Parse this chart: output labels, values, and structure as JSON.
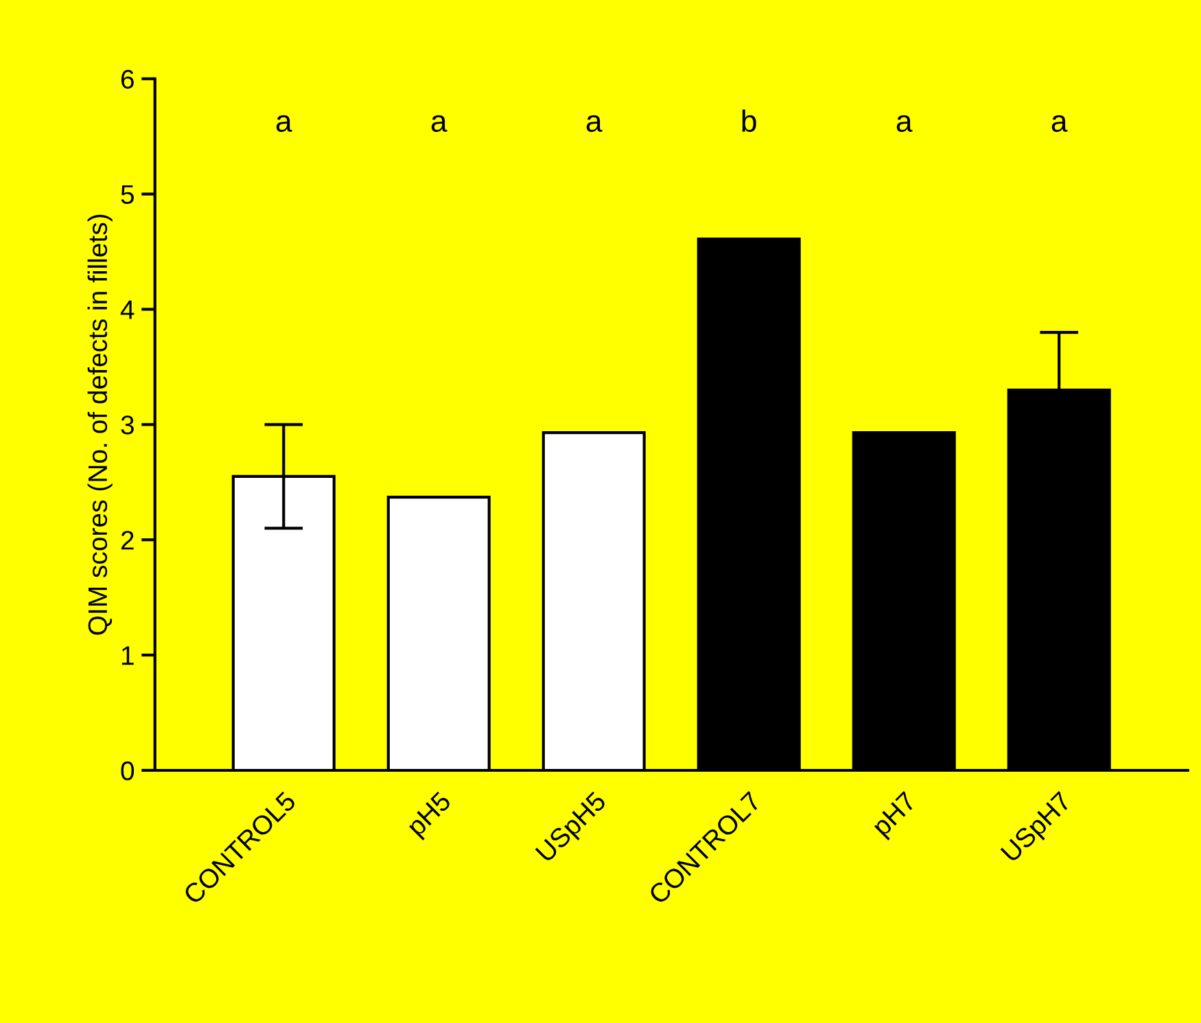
{
  "chart_data": {
    "type": "bar",
    "ylabel": "QIM scores (No. of defects in fillets)",
    "categories": [
      "CONTROL5",
      "pH5",
      "USpH5",
      "CONTROL7",
      "pH7",
      "USpH7"
    ],
    "values": [
      2.55,
      2.37,
      2.93,
      4.61,
      2.93,
      3.3
    ],
    "colors": [
      "#ffffff",
      "#ffffff",
      "#ffffff",
      "#000000",
      "#000000",
      "#000000"
    ],
    "errors": [
      0.45,
      null,
      null,
      null,
      null,
      0.5
    ],
    "ylim": [
      0,
      6
    ],
    "yticks": [
      0,
      1,
      2,
      3,
      4,
      5,
      6
    ],
    "grid": false,
    "annotations": [
      "a",
      "a",
      "a",
      "b",
      "a",
      "a"
    ]
  }
}
